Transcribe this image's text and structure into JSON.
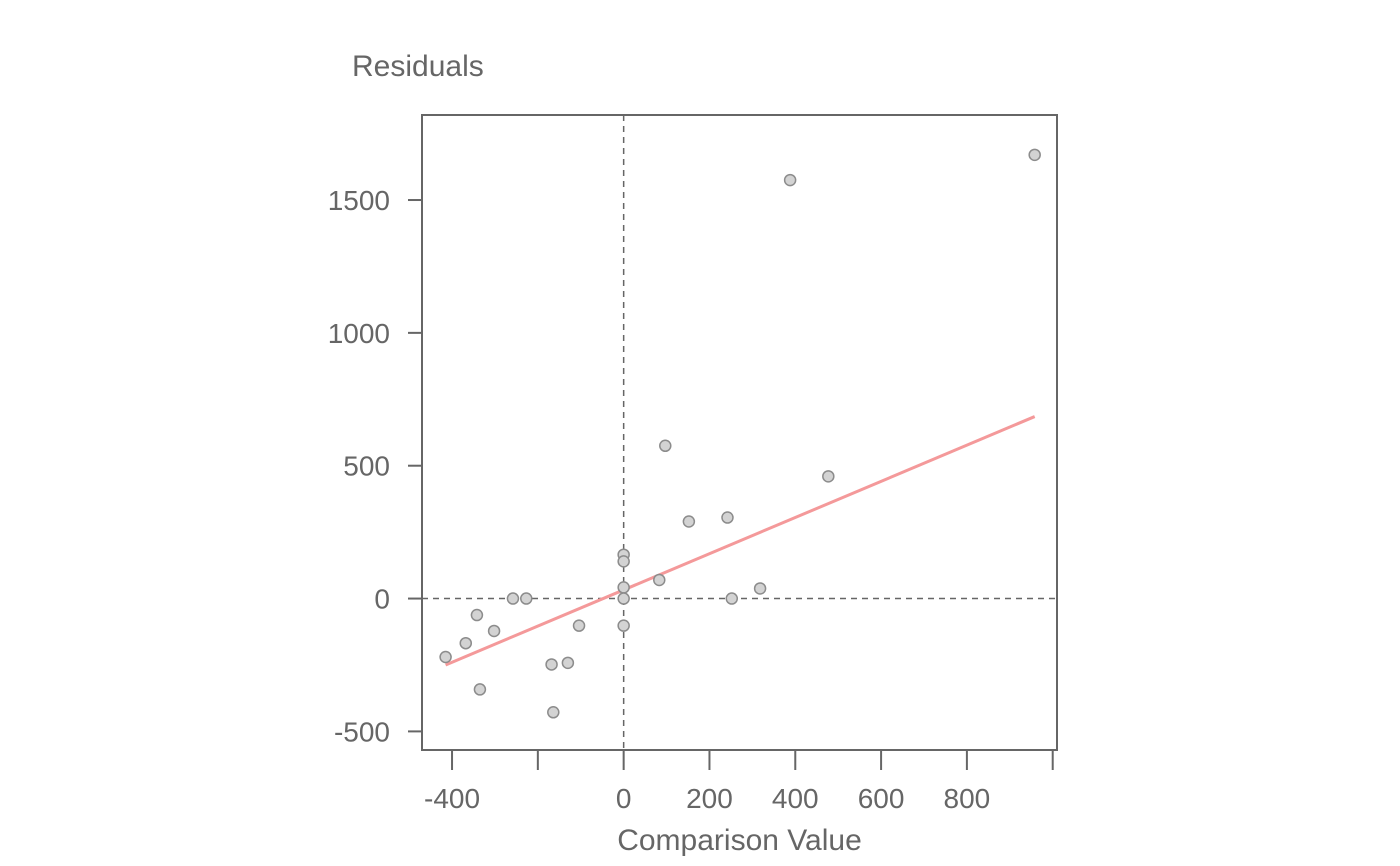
{
  "chart_data": {
    "type": "scatter",
    "title": "",
    "xlabel": "Comparison Value",
    "ylabel": "Residuals",
    "xlim": [
      -470,
      1010
    ],
    "ylim": [
      -570,
      1820
    ],
    "x_ticks": [
      -400,
      -200,
      0,
      200,
      400,
      600,
      800,
      1000
    ],
    "x_tick_labels": [
      "-400",
      "",
      "0",
      "200",
      "400",
      "600",
      "800",
      ""
    ],
    "y_ticks": [
      -500,
      0,
      500,
      1000,
      1500
    ],
    "y_tick_labels": [
      "-500",
      "0",
      "500",
      "1000",
      "1500"
    ],
    "grid": false,
    "reference_lines": {
      "x": 0,
      "y": 0,
      "style": "dashed"
    },
    "colors": {
      "points_fill": "#d3d3d3",
      "points_stroke": "#8c8c8c",
      "fit_line": "#f4999a",
      "axis": "#666666"
    },
    "points": [
      {
        "x": -415,
        "y": -220
      },
      {
        "x": -368,
        "y": -168
      },
      {
        "x": -342,
        "y": -62
      },
      {
        "x": -335,
        "y": -342
      },
      {
        "x": -302,
        "y": -122
      },
      {
        "x": -258,
        "y": 0
      },
      {
        "x": -227,
        "y": 0
      },
      {
        "x": -168,
        "y": -248
      },
      {
        "x": -164,
        "y": -428
      },
      {
        "x": -130,
        "y": -242
      },
      {
        "x": -104,
        "y": -102
      },
      {
        "x": 0,
        "y": 165
      },
      {
        "x": 0,
        "y": 140
      },
      {
        "x": 0,
        "y": 42
      },
      {
        "x": 0,
        "y": 0
      },
      {
        "x": 0,
        "y": -102
      },
      {
        "x": 83,
        "y": 70
      },
      {
        "x": 97,
        "y": 575
      },
      {
        "x": 152,
        "y": 290
      },
      {
        "x": 242,
        "y": 305
      },
      {
        "x": 252,
        "y": 0
      },
      {
        "x": 318,
        "y": 38
      },
      {
        "x": 388,
        "y": 1575
      },
      {
        "x": 477,
        "y": 460
      },
      {
        "x": 958,
        "y": 1670
      }
    ],
    "fit_line": {
      "x": [
        -415,
        958
      ],
      "y": [
        -250,
        685
      ]
    }
  }
}
